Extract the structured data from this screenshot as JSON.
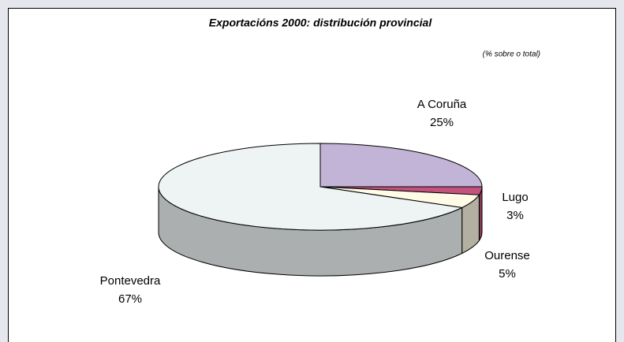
{
  "chart_data": {
    "type": "pie3d",
    "title": "Exportacións 2000: distribución provincial",
    "subtitle": "(% sobre o total)",
    "categories": [
      "A Coruña",
      "Lugo",
      "Ourense",
      "Pontevedra"
    ],
    "values": [
      25,
      3,
      5,
      67
    ],
    "value_labels": [
      "25%",
      "3%",
      "5%",
      "67%"
    ],
    "colors": [
      "#c2b4d6",
      "#c4527e",
      "#fffbe6",
      "#eef3f3"
    ]
  }
}
